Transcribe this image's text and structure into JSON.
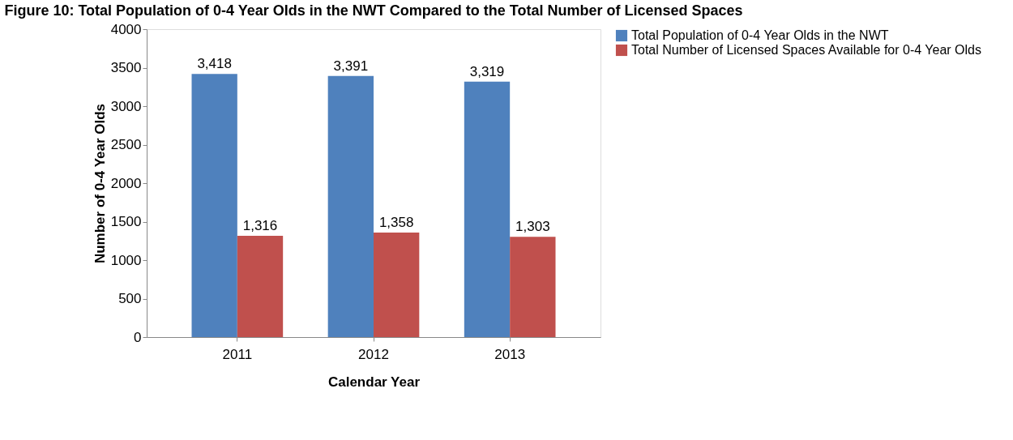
{
  "chart_data": {
    "type": "bar",
    "title": "Figure 10: Total Population of 0-4 Year Olds in the NWT Compared to the Total Number of Licensed Spaces",
    "xlabel": "Calendar Year",
    "ylabel": "Number of 0-4 Year Olds",
    "categories": [
      "2011",
      "2012",
      "2013"
    ],
    "series": [
      {
        "name": "Total Population of 0-4 Year Olds in the NWT",
        "color": "#4f81bd",
        "values": [
          3418,
          3391,
          3319
        ],
        "value_labels": [
          "3,418",
          "3,391",
          "3,319"
        ]
      },
      {
        "name": "Total Number of Licensed Spaces Available for 0-4 Year Olds",
        "color": "#c0504d",
        "values": [
          1316,
          1358,
          1303
        ],
        "value_labels": [
          "1,316",
          "1,358",
          "1,303"
        ]
      }
    ],
    "ylim": [
      0,
      4000
    ],
    "yticks": [
      0,
      500,
      1000,
      1500,
      2000,
      2500,
      3000,
      3500,
      4000
    ],
    "grid": false,
    "legend": "right"
  }
}
